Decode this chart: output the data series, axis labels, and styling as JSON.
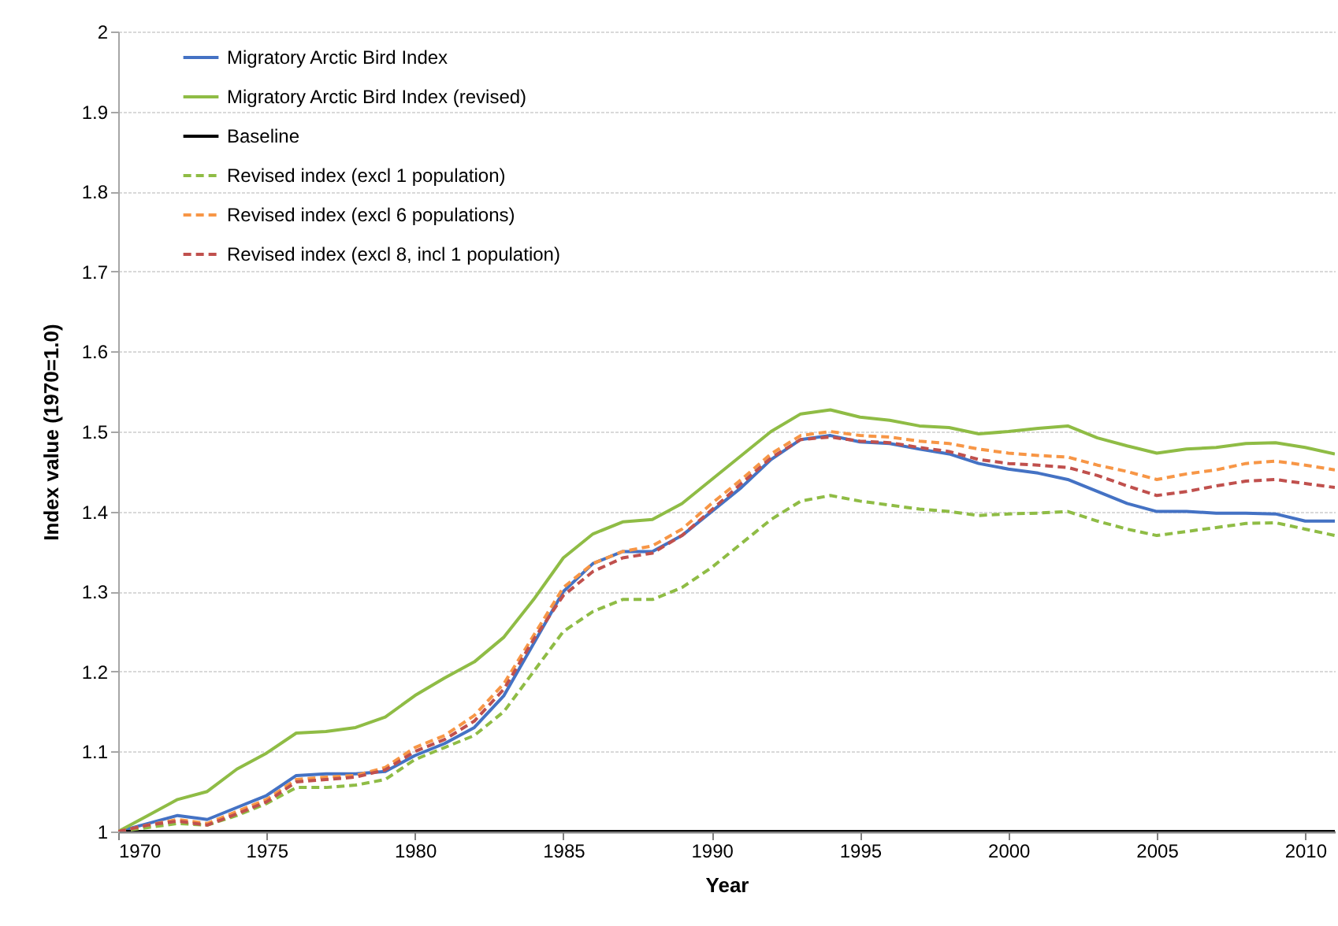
{
  "chart_data": {
    "type": "line",
    "xlabel": "Year",
    "ylabel": "Index value (1970=1.0)",
    "x": [
      1970,
      1971,
      1972,
      1973,
      1974,
      1975,
      1976,
      1977,
      1978,
      1979,
      1980,
      1981,
      1982,
      1983,
      1984,
      1985,
      1986,
      1987,
      1988,
      1989,
      1990,
      1991,
      1992,
      1993,
      1994,
      1995,
      1996,
      1997,
      1998,
      1999,
      2000,
      2001,
      2002,
      2003,
      2004,
      2005,
      2006,
      2007,
      2008,
      2009,
      2010,
      2011
    ],
    "xlim": [
      1970,
      2011
    ],
    "xticks": [
      1970,
      1975,
      1980,
      1985,
      1990,
      1995,
      2000,
      2005,
      2010
    ],
    "ylim": [
      1,
      2
    ],
    "yticks": [
      1,
      1.1,
      1.2,
      1.3,
      1.4,
      1.5,
      1.6,
      1.7,
      1.8,
      1.9,
      2
    ],
    "grid": "y",
    "legend": "top left",
    "series": [
      {
        "name": "Migratory Arctic Bird Index",
        "color": "#4472c4",
        "line_style": "solid",
        "values": [
          1.0,
          1.01,
          1.02,
          1.015,
          1.03,
          1.045,
          1.07,
          1.072,
          1.072,
          1.075,
          1.095,
          1.11,
          1.13,
          1.17,
          1.235,
          1.3,
          1.335,
          1.35,
          1.35,
          1.37,
          1.4,
          1.43,
          1.465,
          1.49,
          1.495,
          1.487,
          1.485,
          1.478,
          1.472,
          1.46,
          1.453,
          1.448,
          1.44,
          1.425,
          1.41,
          1.4,
          1.4,
          1.398,
          1.398,
          1.397,
          1.388,
          1.388
        ]
      },
      {
        "name": "Migratory Arctic Bird Index (revised)",
        "color": "#8fbc45",
        "line_style": "solid",
        "values": [
          1.0,
          1.02,
          1.04,
          1.05,
          1.078,
          1.098,
          1.123,
          1.125,
          1.13,
          1.143,
          1.17,
          1.192,
          1.212,
          1.243,
          1.29,
          1.342,
          1.372,
          1.387,
          1.39,
          1.41,
          1.44,
          1.47,
          1.5,
          1.522,
          1.527,
          1.518,
          1.514,
          1.507,
          1.505,
          1.497,
          1.5,
          1.504,
          1.507,
          1.492,
          1.482,
          1.473,
          1.478,
          1.48,
          1.485,
          1.486,
          1.48,
          1.472
        ]
      },
      {
        "name": "Baseline",
        "color": "#000000",
        "line_style": "solid",
        "values": [
          1,
          1,
          1,
          1,
          1,
          1,
          1,
          1,
          1,
          1,
          1,
          1,
          1,
          1,
          1,
          1,
          1,
          1,
          1,
          1,
          1,
          1,
          1,
          1,
          1,
          1,
          1,
          1,
          1,
          1,
          1,
          1,
          1,
          1,
          1,
          1,
          1,
          1,
          1,
          1,
          1,
          1
        ]
      },
      {
        "name": "Revised index (excl 1 population)",
        "color": "#8fbc45",
        "line_style": "dashed",
        "values": [
          1.0,
          1.005,
          1.01,
          1.008,
          1.02,
          1.035,
          1.055,
          1.055,
          1.058,
          1.065,
          1.09,
          1.105,
          1.12,
          1.15,
          1.2,
          1.25,
          1.275,
          1.29,
          1.29,
          1.305,
          1.33,
          1.36,
          1.39,
          1.413,
          1.42,
          1.413,
          1.408,
          1.403,
          1.4,
          1.395,
          1.397,
          1.398,
          1.4,
          1.388,
          1.378,
          1.37,
          1.375,
          1.38,
          1.385,
          1.386,
          1.378,
          1.37
        ]
      },
      {
        "name": "Revised index (excl 6 populations)",
        "color": "#f79646",
        "line_style": "dashed",
        "values": [
          1.0,
          1.008,
          1.015,
          1.01,
          1.025,
          1.04,
          1.065,
          1.068,
          1.07,
          1.08,
          1.105,
          1.12,
          1.145,
          1.185,
          1.245,
          1.305,
          1.335,
          1.35,
          1.357,
          1.378,
          1.41,
          1.44,
          1.472,
          1.495,
          1.5,
          1.495,
          1.493,
          1.488,
          1.485,
          1.478,
          1.473,
          1.47,
          1.468,
          1.458,
          1.45,
          1.44,
          1.447,
          1.452,
          1.46,
          1.463,
          1.458,
          1.452
        ]
      },
      {
        "name": "Revised index (excl 8, incl 1 population)",
        "color": "#c0504d",
        "line_style": "dashed",
        "values": [
          1.0,
          1.008,
          1.013,
          1.008,
          1.022,
          1.037,
          1.062,
          1.065,
          1.068,
          1.077,
          1.1,
          1.115,
          1.138,
          1.178,
          1.24,
          1.295,
          1.325,
          1.342,
          1.348,
          1.37,
          1.402,
          1.435,
          1.467,
          1.49,
          1.493,
          1.488,
          1.486,
          1.48,
          1.475,
          1.465,
          1.46,
          1.458,
          1.455,
          1.445,
          1.432,
          1.42,
          1.425,
          1.432,
          1.438,
          1.44,
          1.435,
          1.43
        ]
      }
    ]
  }
}
